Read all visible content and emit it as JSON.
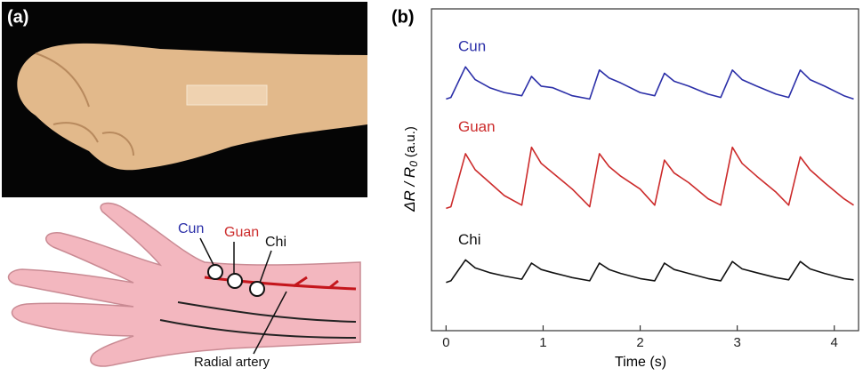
{
  "panel_labels": {
    "a": "(a)",
    "b": "(b)"
  },
  "diagram": {
    "cun": "Cun",
    "guan": "Guan",
    "chi": "Chi",
    "artery": "Radial artery"
  },
  "chart_data": {
    "type": "line",
    "x_label": "Time (s)",
    "y_label": {
      "main": "ΔR / R",
      "sub": "0",
      "unit": "(a.u.)"
    },
    "x": [
      0,
      0.05,
      0.2,
      0.3,
      0.45,
      0.6,
      0.78,
      0.88,
      0.98,
      1.1,
      1.3,
      1.48,
      1.58,
      1.68,
      1.8,
      2.0,
      2.15,
      2.25,
      2.35,
      2.5,
      2.7,
      2.83,
      2.95,
      3.05,
      3.2,
      3.4,
      3.53,
      3.65,
      3.75,
      3.9,
      4.1,
      4.2
    ],
    "series": [
      {
        "name": "Cun",
        "color": "#2b2fa8",
        "values": [
          7.2,
          7.25,
          8.2,
          7.8,
          7.55,
          7.4,
          7.3,
          7.9,
          7.6,
          7.55,
          7.3,
          7.2,
          8.1,
          7.85,
          7.7,
          7.4,
          7.3,
          8.0,
          7.75,
          7.6,
          7.35,
          7.25,
          8.1,
          7.8,
          7.6,
          7.35,
          7.25,
          8.1,
          7.8,
          7.6,
          7.3,
          7.2
        ]
      },
      {
        "name": "Guan",
        "color": "#cc2b2b",
        "values": [
          3.8,
          3.85,
          5.5,
          5.0,
          4.6,
          4.2,
          3.9,
          5.7,
          5.2,
          4.9,
          4.4,
          3.85,
          5.5,
          5.1,
          4.8,
          4.4,
          3.9,
          5.3,
          4.9,
          4.6,
          4.1,
          3.9,
          5.7,
          5.2,
          4.8,
          4.3,
          3.9,
          5.4,
          5.0,
          4.6,
          4.1,
          3.9
        ]
      },
      {
        "name": "Chi",
        "color": "#111111",
        "values": [
          1.5,
          1.55,
          2.2,
          1.95,
          1.8,
          1.7,
          1.6,
          2.1,
          1.9,
          1.8,
          1.65,
          1.55,
          2.1,
          1.9,
          1.78,
          1.62,
          1.55,
          2.1,
          1.9,
          1.78,
          1.62,
          1.55,
          2.15,
          1.92,
          1.8,
          1.65,
          1.58,
          2.15,
          1.92,
          1.78,
          1.62,
          1.58
        ]
      }
    ],
    "xlim": [
      -0.15,
      4.25
    ],
    "xticks": [
      0,
      1,
      2,
      3,
      4
    ],
    "ylim": [
      0,
      10
    ],
    "yticks": [],
    "grid": false
  }
}
